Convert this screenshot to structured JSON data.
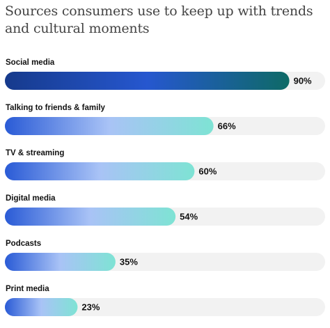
{
  "chart_data": {
    "type": "bar",
    "orientation": "horizontal",
    "title": "Sources consumers use to keep up with trends and cultural moments",
    "categories": [
      "Social media",
      "Talking to friends & family",
      "TV & streaming",
      "Digital media",
      "Podcasts",
      "Print media"
    ],
    "values": [
      90,
      66,
      60,
      54,
      35,
      23
    ],
    "value_labels": [
      "90%",
      "66%",
      "60%",
      "54%",
      "35%",
      "23%"
    ],
    "xlim": [
      0,
      100
    ],
    "track_color": "#f2f2f2",
    "gradients": [
      [
        "#163a8c",
        "#2657cf",
        "#0e6a66"
      ],
      [
        "#2a5bd6",
        "#a9c3f6",
        "#7ee3d4"
      ],
      [
        "#2a5bd6",
        "#a9c3f6",
        "#7ee3d4"
      ],
      [
        "#2a5bd6",
        "#a9c3f6",
        "#7ee3d4"
      ],
      [
        "#2a5bd6",
        "#a9c3f6",
        "#7ee3d4"
      ],
      [
        "#2a5bd6",
        "#a9c3f6",
        "#7ee3d4"
      ]
    ]
  }
}
